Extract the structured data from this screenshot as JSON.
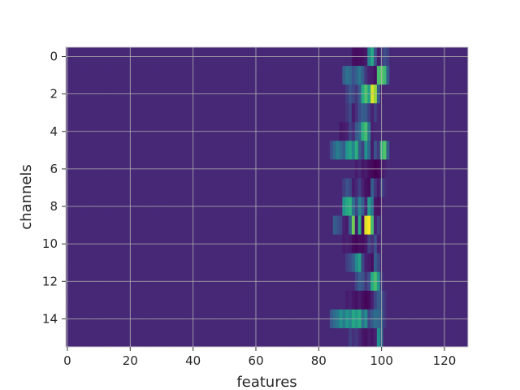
{
  "chart_data": {
    "type": "heatmap",
    "title": "",
    "xlabel": "features",
    "ylabel": "channels",
    "xlim": [
      -0.5,
      127.5
    ],
    "ylim": [
      15.5,
      -0.5
    ],
    "x_ticks": [
      0,
      20,
      40,
      60,
      80,
      100,
      120
    ],
    "y_ticks": [
      0,
      2,
      4,
      6,
      8,
      10,
      12,
      14
    ],
    "grid": true,
    "colormap": "viridis",
    "n_rows": 16,
    "n_cols": 128,
    "value_range": [
      0,
      1
    ],
    "background_value": 0.14,
    "rows": [
      {
        "channel": 0,
        "cells": [
          [
            91,
            0.06
          ],
          [
            92,
            0.04
          ],
          [
            93,
            0.05
          ],
          [
            94,
            0.06
          ],
          [
            95,
            0.09
          ],
          [
            96,
            0.45
          ],
          [
            97,
            0.6
          ],
          [
            98,
            0.25
          ],
          [
            99,
            0.1
          ],
          [
            100,
            0.18
          ],
          [
            101,
            0.24
          ],
          [
            102,
            0.2
          ]
        ]
      },
      {
        "channel": 1,
        "cells": [
          [
            88,
            0.3
          ],
          [
            89,
            0.38
          ],
          [
            90,
            0.34
          ],
          [
            91,
            0.26
          ],
          [
            92,
            0.32
          ],
          [
            93,
            0.4
          ],
          [
            94,
            0.3
          ],
          [
            95,
            0.18
          ],
          [
            96,
            0.12
          ],
          [
            97,
            0.1
          ],
          [
            98,
            0.06
          ],
          [
            99,
            0.7
          ],
          [
            100,
            0.74
          ],
          [
            101,
            0.68
          ],
          [
            102,
            0.3
          ]
        ]
      },
      {
        "channel": 2,
        "cells": [
          [
            89,
            0.2
          ],
          [
            90,
            0.26
          ],
          [
            91,
            0.22
          ],
          [
            92,
            0.18
          ],
          [
            93,
            0.28
          ],
          [
            94,
            0.62
          ],
          [
            95,
            0.72
          ],
          [
            96,
            0.58
          ],
          [
            97,
            0.95
          ],
          [
            98,
            0.85
          ],
          [
            99,
            0.3
          ],
          [
            100,
            0.12
          ]
        ]
      },
      {
        "channel": 3,
        "cells": [
          [
            89,
            0.18
          ],
          [
            90,
            0.22
          ],
          [
            91,
            0.1
          ],
          [
            92,
            0.16
          ],
          [
            93,
            0.24
          ],
          [
            94,
            0.3
          ],
          [
            95,
            0.28
          ],
          [
            96,
            0.2
          ],
          [
            97,
            0.12
          ],
          [
            98,
            0.2
          ]
        ]
      },
      {
        "channel": 4,
        "cells": [
          [
            87,
            0.08
          ],
          [
            88,
            0.1
          ],
          [
            89,
            0.12
          ],
          [
            90,
            0.2
          ],
          [
            91,
            0.15
          ],
          [
            92,
            0.28
          ],
          [
            93,
            0.34
          ],
          [
            94,
            0.64
          ],
          [
            95,
            0.7
          ],
          [
            96,
            0.4
          ],
          [
            97,
            0.12
          ]
        ]
      },
      {
        "channel": 5,
        "cells": [
          [
            84,
            0.24
          ],
          [
            85,
            0.34
          ],
          [
            86,
            0.42
          ],
          [
            87,
            0.36
          ],
          [
            88,
            0.3
          ],
          [
            89,
            0.52
          ],
          [
            90,
            0.58
          ],
          [
            91,
            0.46
          ],
          [
            92,
            0.64
          ],
          [
            93,
            0.3
          ],
          [
            94,
            0.2
          ],
          [
            95,
            0.5
          ],
          [
            96,
            0.34
          ],
          [
            97,
            0.1
          ],
          [
            98,
            0.26
          ],
          [
            99,
            0.18
          ],
          [
            100,
            0.66
          ],
          [
            101,
            0.72
          ],
          [
            102,
            0.3
          ]
        ]
      },
      {
        "channel": 6,
        "cells": [
          [
            92,
            0.1
          ],
          [
            93,
            0.14
          ],
          [
            94,
            0.08
          ],
          [
            95,
            0.1
          ],
          [
            96,
            0.05
          ],
          [
            97,
            0.03
          ],
          [
            98,
            0.0
          ],
          [
            99,
            0.02
          ],
          [
            100,
            0.08
          ],
          [
            101,
            0.12
          ]
        ]
      },
      {
        "channel": 7,
        "cells": [
          [
            88,
            0.2
          ],
          [
            89,
            0.26
          ],
          [
            90,
            0.22
          ],
          [
            91,
            0.1
          ],
          [
            92,
            0.14
          ],
          [
            93,
            0.2
          ],
          [
            94,
            0.12
          ],
          [
            95,
            0.06
          ],
          [
            96,
            0.04
          ],
          [
            97,
            0.3
          ],
          [
            98,
            0.18
          ],
          [
            99,
            0.1
          ],
          [
            100,
            0.22
          ],
          [
            101,
            0.16
          ]
        ]
      },
      {
        "channel": 8,
        "cells": [
          [
            88,
            0.52
          ],
          [
            89,
            0.6
          ],
          [
            90,
            0.64
          ],
          [
            91,
            0.38
          ],
          [
            92,
            0.22
          ],
          [
            93,
            0.44
          ],
          [
            94,
            0.3
          ],
          [
            95,
            0.14
          ],
          [
            96,
            0.54
          ],
          [
            97,
            0.4
          ],
          [
            98,
            0.08
          ],
          [
            99,
            0.06
          ],
          [
            100,
            0.12
          ]
        ]
      },
      {
        "channel": 9,
        "cells": [
          [
            85,
            0.3
          ],
          [
            86,
            0.26
          ],
          [
            87,
            0.22
          ],
          [
            88,
            0.12
          ],
          [
            89,
            0.1
          ],
          [
            90,
            0.3
          ],
          [
            91,
            0.78
          ],
          [
            92,
            0.1
          ],
          [
            93,
            0.62
          ],
          [
            94,
            0.05
          ],
          [
            95,
            0.95
          ],
          [
            96,
            1.0
          ],
          [
            97,
            0.7
          ],
          [
            98,
            0.12
          ],
          [
            99,
            0.2
          ]
        ]
      },
      {
        "channel": 10,
        "cells": [
          [
            88,
            0.1
          ],
          [
            89,
            0.12
          ],
          [
            90,
            0.1
          ],
          [
            91,
            0.04
          ],
          [
            92,
            0.02
          ],
          [
            93,
            0.05
          ],
          [
            94,
            0.04
          ],
          [
            95,
            0.08
          ],
          [
            96,
            0.2
          ],
          [
            97,
            0.16
          ],
          [
            98,
            0.24
          ],
          [
            99,
            0.12
          ]
        ]
      },
      {
        "channel": 11,
        "cells": [
          [
            89,
            0.2
          ],
          [
            90,
            0.24
          ],
          [
            91,
            0.3
          ],
          [
            92,
            0.46
          ],
          [
            93,
            0.58
          ],
          [
            94,
            0.22
          ],
          [
            95,
            0.12
          ],
          [
            96,
            0.1
          ],
          [
            97,
            0.06
          ],
          [
            98,
            0.3
          ],
          [
            99,
            0.22
          ]
        ]
      },
      {
        "channel": 12,
        "cells": [
          [
            92,
            0.22
          ],
          [
            93,
            0.3
          ],
          [
            94,
            0.26
          ],
          [
            95,
            0.18
          ],
          [
            96,
            0.24
          ],
          [
            97,
            0.62
          ],
          [
            98,
            0.7
          ],
          [
            99,
            0.52
          ],
          [
            100,
            0.18
          ]
        ]
      },
      {
        "channel": 13,
        "cells": [
          [
            89,
            0.1
          ],
          [
            90,
            0.12
          ],
          [
            91,
            0.08
          ],
          [
            92,
            0.06
          ],
          [
            93,
            0.1
          ],
          [
            94,
            0.05
          ],
          [
            95,
            0.02
          ],
          [
            96,
            0.04
          ],
          [
            97,
            0.12
          ],
          [
            98,
            0.22
          ],
          [
            99,
            0.3
          ],
          [
            100,
            0.26
          ],
          [
            101,
            0.18
          ]
        ]
      },
      {
        "channel": 14,
        "cells": [
          [
            84,
            0.28
          ],
          [
            85,
            0.36
          ],
          [
            86,
            0.4
          ],
          [
            87,
            0.5
          ],
          [
            88,
            0.42
          ],
          [
            89,
            0.52
          ],
          [
            90,
            0.46
          ],
          [
            91,
            0.6
          ],
          [
            92,
            0.54
          ],
          [
            93,
            0.62
          ],
          [
            94,
            0.38
          ],
          [
            95,
            0.48
          ],
          [
            96,
            0.22
          ],
          [
            97,
            0.3
          ],
          [
            98,
            0.36
          ],
          [
            99,
            0.34
          ],
          [
            100,
            0.3
          ],
          [
            101,
            0.18
          ]
        ]
      },
      {
        "channel": 15,
        "cells": [
          [
            90,
            0.2
          ],
          [
            91,
            0.16
          ],
          [
            92,
            0.18
          ],
          [
            93,
            0.14
          ],
          [
            94,
            0.08
          ],
          [
            95,
            0.06
          ],
          [
            96,
            0.1
          ],
          [
            97,
            0.08
          ],
          [
            98,
            0.12
          ],
          [
            99,
            0.5
          ],
          [
            100,
            0.34
          ]
        ]
      }
    ]
  }
}
